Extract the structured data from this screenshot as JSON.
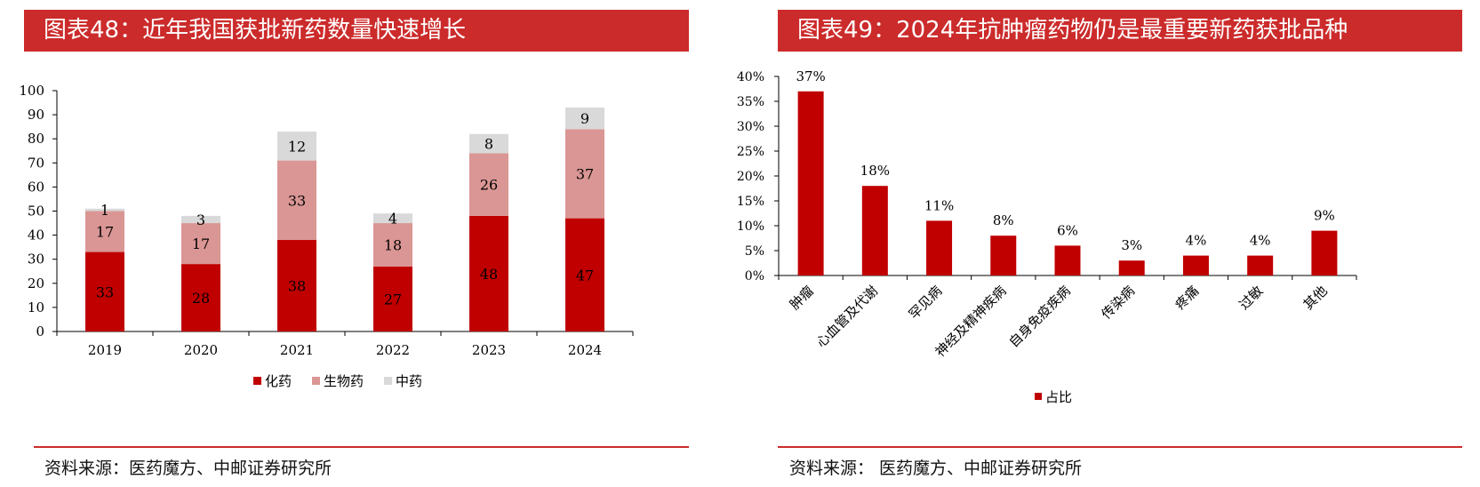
{
  "left": {
    "title": "图表48：近年我国获批新药数量快速增长",
    "source": "资料来源：医药魔方、中邮证券研究所"
  },
  "right": {
    "title": "图表49：2024年抗肿瘤药物仍是最重要新药获批品种",
    "source": "资料来源：  医药魔方、中邮证券研究所"
  },
  "chart_data": [
    {
      "type": "bar",
      "stacked": true,
      "title": "图表48：近年我国获批新药数量快速增长",
      "categories": [
        "2019",
        "2020",
        "2021",
        "2022",
        "2023",
        "2024"
      ],
      "series": [
        {
          "name": "化药",
          "values": [
            33,
            28,
            38,
            27,
            48,
            47
          ],
          "color": "#c00000"
        },
        {
          "name": "生物药",
          "values": [
            17,
            17,
            33,
            18,
            26,
            37
          ],
          "color": "#da9694"
        },
        {
          "name": "中药",
          "values": [
            1,
            3,
            12,
            4,
            8,
            9
          ],
          "color": "#d9d9d9"
        }
      ],
      "yticks": [
        "0",
        "10",
        "20",
        "30",
        "40",
        "50",
        "60",
        "70",
        "80",
        "90",
        "100"
      ],
      "ylim": [
        0,
        100
      ],
      "legend": "bottom",
      "grid": false
    },
    {
      "type": "bar",
      "title": "图表49：2024年抗肿瘤药物仍是最重要新药获批品种",
      "categories": [
        "肿瘤",
        "心血管及代谢",
        "罕见病",
        "神经及精神疾病",
        "自身免疫疾病",
        "传染病",
        "疼痛",
        "过敏",
        "其他"
      ],
      "series": [
        {
          "name": "占比",
          "values": [
            37,
            18,
            11,
            8,
            6,
            3,
            4,
            4,
            9
          ],
          "color": "#c00000"
        }
      ],
      "value_labels": [
        "37%",
        "18%",
        "11%",
        "8%",
        "6%",
        "3%",
        "4%",
        "4%",
        "9%"
      ],
      "yticks": [
        "0%",
        "5%",
        "10%",
        "15%",
        "20%",
        "25%",
        "30%",
        "35%",
        "40%"
      ],
      "ylim": [
        0,
        40
      ],
      "legend": "bottom",
      "grid": false
    }
  ]
}
